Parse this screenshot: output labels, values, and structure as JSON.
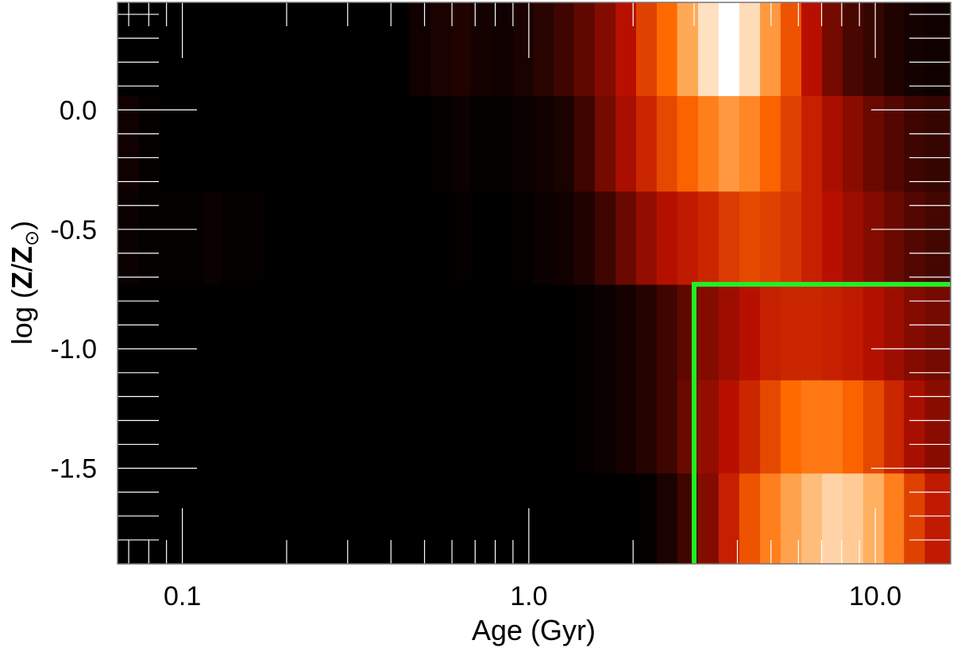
{
  "chart_data": {
    "type": "heatmap",
    "title": "",
    "xlabel": "Age (Gyr)",
    "ylabel": {
      "prefix": "log (",
      "z": "Z",
      "slash": "/",
      "zsun": "Z",
      "sun_symbol": "⊙",
      "suffix": ")"
    },
    "x_scale": "log",
    "xlim": [
      0.065,
      16.5
    ],
    "ylim": [
      -1.9,
      0.45
    ],
    "x_ticks": [
      {
        "value": 0.1,
        "label": "0.1"
      },
      {
        "value": 1.0,
        "label": "1.0"
      },
      {
        "value": 10.0,
        "label": "10.0"
      }
    ],
    "y_ticks": [
      {
        "value": 0.0,
        "label": "0.0"
      },
      {
        "value": -0.5,
        "label": "-0.5"
      },
      {
        "value": -1.0,
        "label": "-1.0"
      },
      {
        "value": -1.5,
        "label": "-1.5"
      }
    ],
    "metallicity_bin_edges": [
      -1.9,
      -1.52,
      -1.13,
      -0.73,
      -0.34,
      0.06,
      0.45
    ],
    "age_bin_edges": [
      0.065,
      0.075,
      0.086,
      0.1,
      0.116,
      0.13,
      0.15,
      0.17,
      0.2,
      0.23,
      0.26,
      0.3,
      0.34,
      0.4,
      0.45,
      0.52,
      0.6,
      0.68,
      0.78,
      0.9,
      1.03,
      1.18,
      1.35,
      1.55,
      1.78,
      2.04,
      2.34,
      2.68,
      3.08,
      3.53,
      4.05,
      4.65,
      5.33,
      6.12,
      7.02,
      8.05,
      9.23,
      10.6,
      12.1,
      13.9,
      16.5
    ],
    "rows": [
      {
        "logZ_range": [
          -1.9,
          -1.52
        ],
        "weights": [
          0,
          0,
          0,
          0,
          0,
          0,
          0,
          0,
          0,
          0,
          0,
          0,
          0,
          0,
          0,
          0,
          0,
          0,
          0,
          0,
          0,
          0,
          0,
          0,
          0,
          0.01,
          0.05,
          0.12,
          0.25,
          0.4,
          0.55,
          0.68,
          0.78,
          0.85,
          0.9,
          0.88,
          0.82,
          0.68,
          0.5,
          0.38
        ]
      },
      {
        "logZ_range": [
          -1.52,
          -1.13
        ],
        "weights": [
          0,
          0,
          0,
          0,
          0,
          0,
          0,
          0,
          0,
          0,
          0,
          0,
          0,
          0,
          0,
          0,
          0,
          0,
          0,
          0,
          0,
          0,
          0.01,
          0.02,
          0.04,
          0.07,
          0.12,
          0.2,
          0.28,
          0.35,
          0.42,
          0.52,
          0.62,
          0.66,
          0.66,
          0.6,
          0.52,
          0.42,
          0.32,
          0.26
        ]
      },
      {
        "logZ_range": [
          -1.13,
          -0.73
        ],
        "weights": [
          0,
          0,
          0,
          0,
          0,
          0,
          0,
          0,
          0,
          0,
          0,
          0,
          0,
          0,
          0,
          0,
          0,
          0,
          0,
          0,
          0,
          0,
          0.01,
          0.02,
          0.04,
          0.07,
          0.12,
          0.18,
          0.25,
          0.3,
          0.35,
          0.4,
          0.42,
          0.42,
          0.4,
          0.38,
          0.34,
          0.3,
          0.25,
          0.22
        ]
      },
      {
        "logZ_range": [
          -0.73,
          -0.34
        ],
        "weights": [
          0.02,
          0.01,
          0.01,
          0.01,
          0.02,
          0.01,
          0.01,
          0,
          0,
          0,
          0,
          0,
          0,
          0,
          0,
          0,
          0.01,
          0,
          0,
          0.01,
          0.02,
          0.03,
          0.06,
          0.12,
          0.2,
          0.28,
          0.34,
          0.38,
          0.42,
          0.48,
          0.52,
          0.5,
          0.46,
          0.4,
          0.35,
          0.3,
          0.25,
          0.2,
          0.16,
          0.13
        ]
      },
      {
        "logZ_range": [
          -0.34,
          0.06
        ],
        "weights": [
          0.03,
          0.01,
          0,
          0,
          0,
          0,
          0,
          0,
          0,
          0,
          0,
          0,
          0,
          0,
          0,
          0.01,
          0.02,
          0.01,
          0.01,
          0.02,
          0.03,
          0.05,
          0.12,
          0.22,
          0.32,
          0.42,
          0.52,
          0.6,
          0.68,
          0.75,
          0.7,
          0.6,
          0.5,
          0.4,
          0.32,
          0.26,
          0.2,
          0.16,
          0.12,
          0.1
        ]
      },
      {
        "logZ_range": [
          0.06,
          0.45
        ],
        "weights": [
          0,
          0,
          0,
          0,
          0,
          0,
          0,
          0,
          0,
          0,
          0,
          0,
          0,
          0,
          0.03,
          0.05,
          0.06,
          0.04,
          0.03,
          0.05,
          0.08,
          0.12,
          0.18,
          0.25,
          0.35,
          0.5,
          0.62,
          0.8,
          0.93,
          1.0,
          0.92,
          0.75,
          0.55,
          0.35,
          0.22,
          0.14,
          0.1,
          0.06,
          0.04,
          0.03
        ]
      }
    ],
    "colormap": "black-red-yellow-white (heat)",
    "colors": {
      "stop_0": "#000000",
      "stop_1": "#b81000",
      "stop_2": "#ff6a00",
      "stop_3": "#ffb060",
      "stop_4": "#ffffff",
      "axis": "#777777",
      "tick": "#ffffff"
    },
    "overlay": {
      "type": "corner",
      "color": "#22ee22",
      "vertex": {
        "age": 3.0,
        "logZ": -0.73
      },
      "x_extent_to": 16.5,
      "y_extent_to": -1.9
    }
  }
}
